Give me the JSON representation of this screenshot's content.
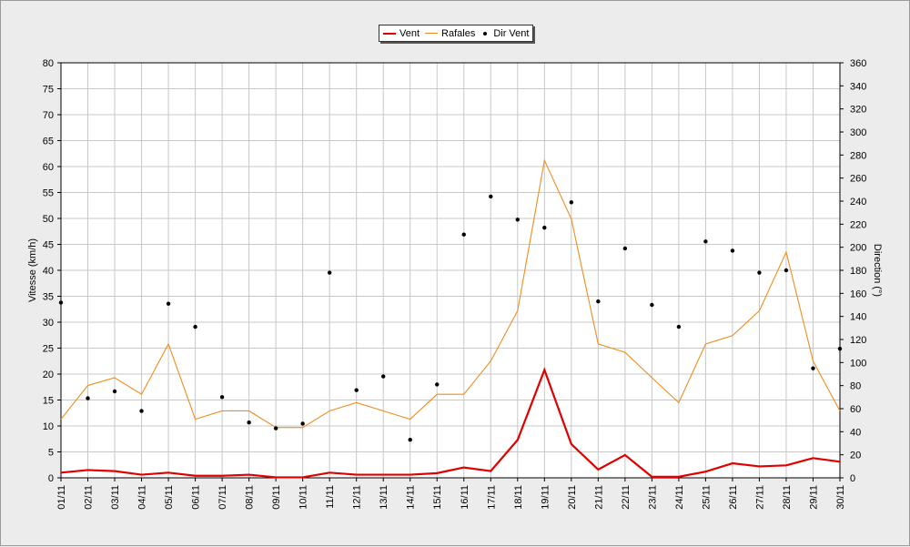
{
  "chart_data": {
    "type": "line",
    "categories": [
      "01/11",
      "02/11",
      "03/11",
      "04/11",
      "05/11",
      "06/11",
      "07/11",
      "08/11",
      "09/11",
      "10/11",
      "11/11",
      "12/11",
      "13/11",
      "14/11",
      "15/11",
      "16/11",
      "17/11",
      "18/11",
      "19/11",
      "20/11",
      "21/11",
      "22/11",
      "23/11",
      "24/11",
      "25/11",
      "26/11",
      "27/11",
      "28/11",
      "29/11",
      "30/11"
    ],
    "ylabel": "Vitesse (km/h)",
    "ylim": [
      0,
      80
    ],
    "yticks": [
      "0",
      "5",
      "10",
      "15",
      "20",
      "25",
      "30",
      "35",
      "40",
      "45",
      "50",
      "55",
      "60",
      "65",
      "70",
      "75",
      "80"
    ],
    "y2label": "Direction (°)",
    "y2lim": [
      0,
      360
    ],
    "y2ticks": [
      "0",
      "20",
      "40",
      "60",
      "80",
      "100",
      "120",
      "140",
      "160",
      "180",
      "200",
      "220",
      "240",
      "260",
      "280",
      "300",
      "320",
      "340",
      "360"
    ],
    "grid": true,
    "legend_position": "top-center",
    "series": [
      {
        "name": "Vent",
        "axis": "left",
        "kind": "line",
        "color": "#e00000",
        "values": [
          1.0,
          1.5,
          1.3,
          0.6,
          1.0,
          0.4,
          0.4,
          0.6,
          0.1,
          0.1,
          1.0,
          0.6,
          0.6,
          0.6,
          0.9,
          2.0,
          1.3,
          7.3,
          20.8,
          6.5,
          1.6,
          4.4,
          0.2,
          0.2,
          1.2,
          2.8,
          2.2,
          2.4,
          3.8,
          3.1
        ]
      },
      {
        "name": "Rafales",
        "axis": "left",
        "kind": "line",
        "color": "#f08c1e",
        "values": [
          11.3,
          17.8,
          19.3,
          16.1,
          25.8,
          11.3,
          12.9,
          12.9,
          9.7,
          9.7,
          12.9,
          14.5,
          12.9,
          11.3,
          16.1,
          16.1,
          22.5,
          32.2,
          61.2,
          49.9,
          25.8,
          24.2,
          19.3,
          14.5,
          25.8,
          27.4,
          32.2,
          43.5,
          22.5,
          12.9
        ]
      },
      {
        "name": "Dir Vent",
        "axis": "right",
        "kind": "scatter",
        "color": "#000000",
        "values": [
          152,
          69,
          75,
          58,
          151,
          131,
          70,
          48,
          43,
          47,
          178,
          76,
          88,
          33,
          81,
          211,
          244,
          224,
          217,
          239,
          153,
          199,
          150,
          131,
          205,
          197,
          178,
          180,
          95,
          112
        ]
      }
    ]
  }
}
